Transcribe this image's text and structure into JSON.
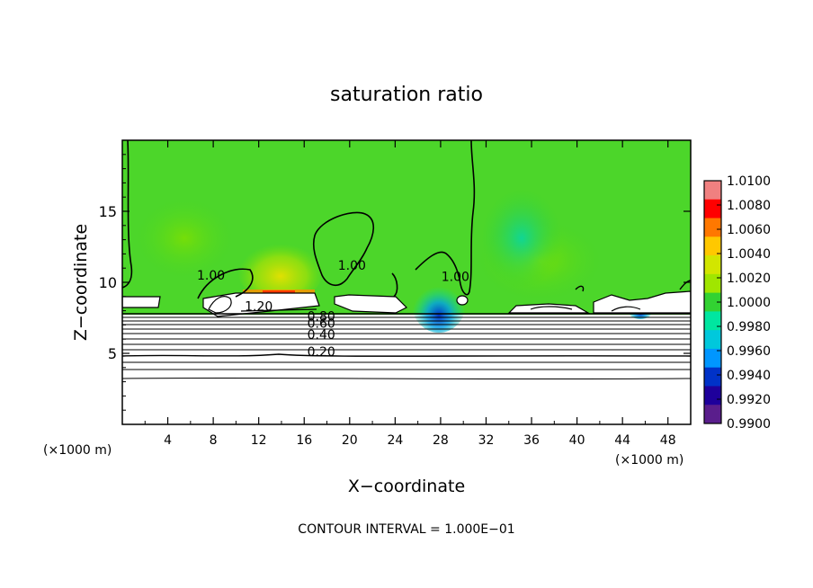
{
  "chart_data": {
    "type": "heatmap",
    "title": "saturation ratio",
    "xlabel": "X−coordinate",
    "ylabel": "Z−coordinate",
    "x_units_label": "(×1000 m)",
    "y_units_label": "(×1000 m)",
    "footer": "CONTOUR INTERVAL = 1.000E−01",
    "xlim": [
      0,
      50
    ],
    "ylim": [
      0,
      20
    ],
    "x_ticks": [
      4,
      8,
      12,
      16,
      20,
      24,
      28,
      32,
      36,
      40,
      44,
      48
    ],
    "y_ticks": [
      5,
      10,
      15
    ],
    "colorbar": {
      "min": 0.99,
      "max": 1.01,
      "tick_labels": [
        "1.0100",
        "1.0080",
        "1.0060",
        "1.0040",
        "1.0020",
        "1.0000",
        "0.9980",
        "0.9960",
        "0.9940",
        "0.9920",
        "0.9900"
      ],
      "colors": [
        "#f08080",
        "#ff0000",
        "#ff7800",
        "#ffc800",
        "#d2e600",
        "#a0e600",
        "#32d232",
        "#00e6a0",
        "#00c8dc",
        "#0096ff",
        "#0032c8",
        "#1e009b",
        "#5a1e8c"
      ]
    },
    "contour_labels": [
      {
        "text": "1.00",
        "x": 7.8,
        "y": 10.2
      },
      {
        "text": "1.00",
        "x": 20.2,
        "y": 10.9
      },
      {
        "text": "1.00",
        "x": 29.3,
        "y": 10.1
      },
      {
        "text": "1.20",
        "x": 12.0,
        "y": 8.0
      },
      {
        "text": "0.80",
        "x": 17.5,
        "y": 7.3
      },
      {
        "text": "0.60",
        "x": 17.5,
        "y": 6.8
      },
      {
        "text": "0.40",
        "x": 17.5,
        "y": 6.0
      },
      {
        "text": "0.20",
        "x": 17.5,
        "y": 4.8
      }
    ]
  }
}
